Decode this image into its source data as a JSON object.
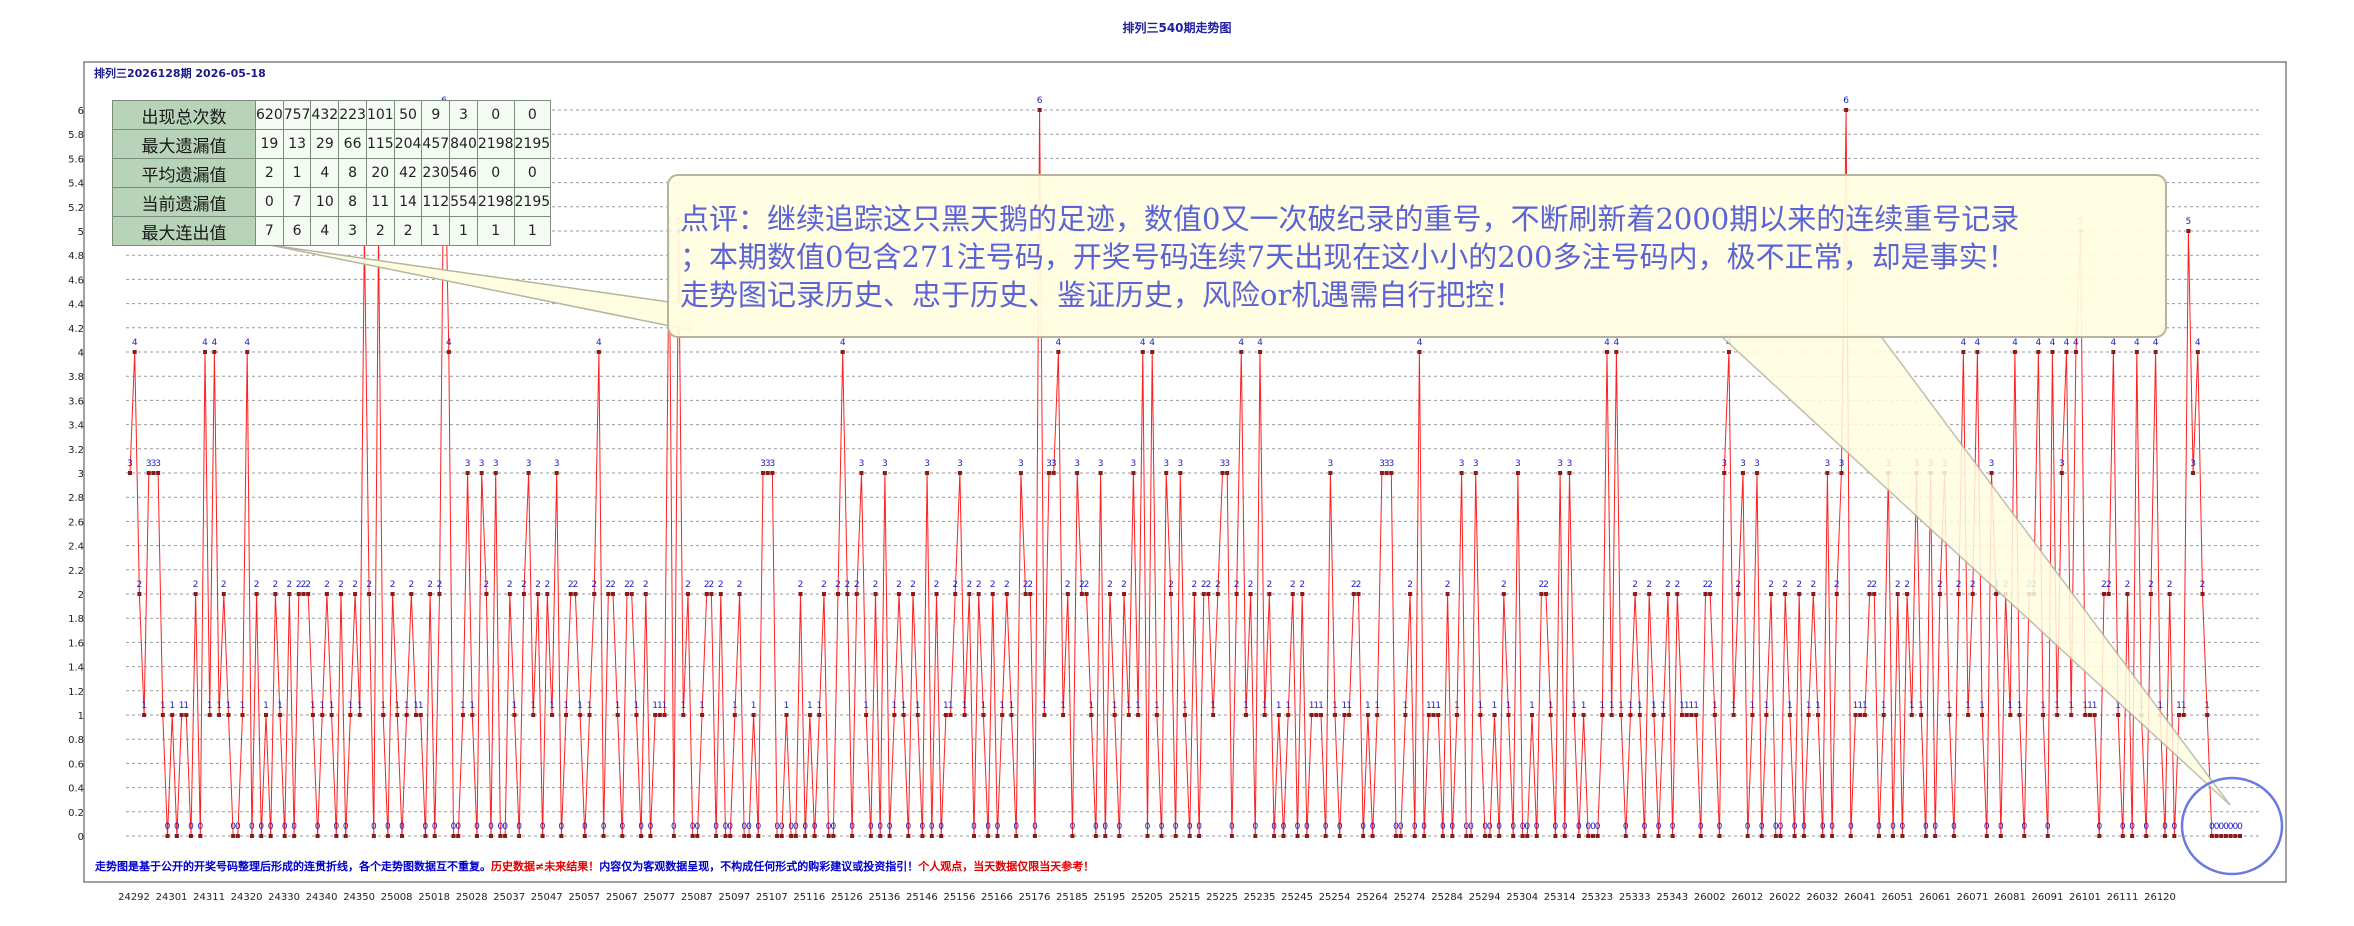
{
  "page_title": "排列三540期走势图",
  "header": {
    "subtitle": "排列三2026128期 2026-05-18"
  },
  "stats_table": {
    "rows": [
      {
        "label": "出现总次数",
        "values": [
          "620",
          "757",
          "432",
          "223",
          "101",
          "50",
          "9",
          "3",
          "0",
          "0"
        ]
      },
      {
        "label": "最大遗漏值",
        "values": [
          "19",
          "13",
          "29",
          "66",
          "115",
          "204",
          "457",
          "840",
          "2198",
          "2195"
        ]
      },
      {
        "label": "平均遗漏值",
        "values": [
          "2",
          "1",
          "4",
          "8",
          "20",
          "42",
          "230",
          "546",
          "0",
          "0"
        ]
      },
      {
        "label": "当前遗漏值",
        "values": [
          "0",
          "7",
          "10",
          "8",
          "11",
          "14",
          "112",
          "554",
          "2198",
          "2195"
        ]
      },
      {
        "label": "最大连出值",
        "values": [
          "7",
          "6",
          "4",
          "3",
          "2",
          "2",
          "1",
          "1",
          "1",
          "1"
        ]
      }
    ]
  },
  "callout": {
    "lines": [
      "点评：继续追踪这只黑天鹅的足迹，数值0又一次破纪录的重号，不断刷新着2000期以来的连续重号记录",
      "；本期数值0包含271注号码，开奖号码连续7天出现在这小小的200多注号码内，极不正常，却是事实！",
      "走势图记录历史、忠于历史、鉴证历史，风险or机遇需自行把控！"
    ]
  },
  "footer": {
    "disclaimer": [
      {
        "text": "走势图是基于公开的开奖号码整理后形成的连贯折线，各个走势图数据互不重复。",
        "color": "#0000cc"
      },
      {
        "text": "历史数据≠未来结果！",
        "color": "#e00000"
      },
      {
        "text": "内容仅为客观数据呈现，不构成任何形式的购彩建议或投资指引！",
        "color": "#0000cc"
      },
      {
        "text": "个人观点，当天数据仅限当天参考！",
        "color": "#e00000"
      }
    ]
  },
  "chart_data": {
    "type": "line",
    "title": "排列三540期走势图",
    "colors": {
      "line": "#ff2020",
      "marker": "#8b1a1a",
      "label": "#2020c0",
      "grid": "#9a9a9a",
      "callout_fill": "#fffde0",
      "callout_border": "#b4b4a0",
      "highlight_circle": "#6a7ae0"
    },
    "ylim": [
      0,
      6
    ],
    "yticks": [
      "0",
      "0.2",
      "0.4",
      "0.6",
      "0.8",
      "1",
      "1.2",
      "1.4",
      "1.6",
      "1.8",
      "2",
      "2.2",
      "2.4",
      "2.6",
      "2.8",
      "3",
      "3.2",
      "3.4",
      "3.6",
      "3.8",
      "4",
      "4.2",
      "4.4",
      "4.6",
      "4.8",
      "5",
      "5.2",
      "5.4",
      "5.6",
      "5.8",
      "6"
    ],
    "xtick_labels": [
      "24292",
      "24301",
      "24311",
      "24320",
      "24330",
      "24340",
      "24350",
      "25008",
      "25018",
      "25028",
      "25037",
      "25047",
      "25057",
      "25067",
      "25077",
      "25087",
      "25097",
      "25107",
      "25116",
      "25126",
      "25136",
      "25146",
      "25156",
      "25166",
      "25176",
      "25185",
      "25195",
      "25205",
      "25215",
      "25225",
      "25235",
      "25245",
      "25254",
      "25264",
      "25274",
      "25284",
      "25294",
      "25304",
      "25314",
      "25323",
      "25333",
      "25343",
      "26002",
      "26012",
      "26022",
      "26032",
      "26041",
      "26051",
      "26061",
      "26071",
      "26081",
      "26091",
      "26101",
      "26111",
      "26120"
    ],
    "values": [
      3,
      4,
      2,
      1,
      3,
      3,
      3,
      1,
      0,
      1,
      0,
      1,
      1,
      0,
      2,
      0,
      4,
      1,
      4,
      1,
      2,
      1,
      0,
      0,
      1,
      4,
      0,
      2,
      0,
      1,
      0,
      2,
      1,
      0,
      2,
      0,
      2,
      2,
      2,
      1,
      0,
      1,
      2,
      1,
      0,
      2,
      0,
      1,
      2,
      1,
      5,
      2,
      0,
      5,
      1,
      0,
      2,
      1,
      0,
      1,
      2,
      1,
      1,
      0,
      2,
      0,
      2,
      6,
      4,
      0,
      0,
      1,
      3,
      1,
      0,
      3,
      2,
      0,
      3,
      0,
      0,
      2,
      1,
      0,
      2,
      3,
      1,
      2,
      0,
      2,
      1,
      3,
      0,
      1,
      2,
      2,
      1,
      0,
      1,
      2,
      4,
      0,
      2,
      2,
      1,
      0,
      2,
      2,
      1,
      0,
      2,
      0,
      1,
      1,
      1,
      5,
      0,
      5,
      1,
      2,
      0,
      0,
      1,
      2,
      2,
      0,
      2,
      0,
      0,
      1,
      2,
      0,
      0,
      1,
      0,
      3,
      3,
      3,
      0,
      0,
      1,
      0,
      0,
      2,
      0,
      1,
      0,
      1,
      2,
      0,
      0,
      2,
      4,
      2,
      0,
      2,
      3,
      1,
      0,
      2,
      0,
      3,
      0,
      1,
      2,
      1,
      0,
      2,
      1,
      0,
      3,
      0,
      2,
      0,
      1,
      1,
      2,
      3,
      1,
      2,
      0,
      2,
      1,
      0,
      2,
      0,
      1,
      2,
      1,
      0,
      3,
      2,
      2,
      0,
      6,
      1,
      3,
      3,
      4,
      1,
      2,
      0,
      3,
      2,
      2,
      1,
      0,
      3,
      0,
      2,
      1,
      0,
      2,
      1,
      3,
      1,
      4,
      0,
      4,
      1,
      0,
      3,
      2,
      0,
      3,
      1,
      0,
      2,
      0,
      2,
      2,
      1,
      2,
      3,
      3,
      0,
      2,
      4,
      1,
      2,
      0,
      4,
      1,
      2,
      0,
      1,
      0,
      1,
      2,
      0,
      2,
      0,
      1,
      1,
      1,
      0,
      3,
      1,
      0,
      1,
      1,
      2,
      2,
      0,
      1,
      0,
      1,
      3,
      3,
      3,
      0,
      0,
      1,
      2,
      0,
      4,
      0,
      1,
      1,
      1,
      0,
      2,
      0,
      1,
      3,
      0,
      0,
      3,
      1,
      0,
      0,
      1,
      0,
      2,
      1,
      0,
      3,
      0,
      0,
      1,
      0,
      2,
      2,
      1,
      0,
      3,
      0,
      3,
      1,
      0,
      1,
      0,
      0,
      0,
      1,
      4,
      1,
      4,
      1,
      0,
      1,
      2,
      1,
      0,
      2,
      1,
      0,
      1,
      2,
      0,
      2,
      1,
      1,
      1,
      1,
      0,
      2,
      2,
      1,
      0,
      3,
      4,
      1,
      2,
      3,
      0,
      1,
      3,
      0,
      1,
      2,
      0,
      0,
      2,
      1,
      0,
      2,
      0,
      1,
      2,
      1,
      0,
      3,
      0,
      2,
      3,
      6,
      0,
      1,
      1,
      1,
      2,
      2,
      0,
      1,
      3,
      0,
      2,
      0,
      2,
      1,
      3,
      1,
      0,
      3,
      0,
      2,
      3,
      1,
      0,
      2,
      4,
      1,
      2,
      4,
      1,
      0,
      3,
      2,
      0,
      2,
      1,
      4,
      1,
      0,
      2,
      2,
      4,
      1,
      0,
      4,
      1,
      3,
      4,
      1,
      4,
      5,
      1,
      1,
      1,
      0,
      2,
      2,
      4,
      1,
      0,
      2,
      0,
      4,
      1,
      0,
      2,
      4,
      1,
      0,
      2,
      0,
      1,
      1,
      5,
      3,
      4,
      2,
      1,
      0,
      0,
      0,
      0,
      0,
      0,
      0
    ]
  }
}
